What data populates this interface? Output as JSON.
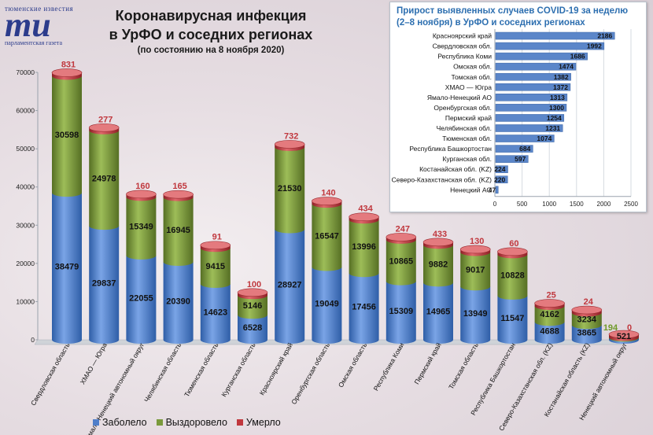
{
  "logo": {
    "top": "тюменские известия",
    "mark": "mu",
    "sub": "парламентская газета"
  },
  "main": {
    "title_line1": "Коронавирусная инфекция",
    "title_line2": "в УрФО и соседних регионах",
    "subtitle": "(по состоянию на 8 ноября 2020)"
  },
  "legend": {
    "sick": "Заболело",
    "recovered": "Выздоровело",
    "died": "Умерло"
  },
  "colors": {
    "sick": "#4f7ec9",
    "recovered": "#7a9a3c",
    "died": "#c0373d"
  },
  "chart_data": [
    {
      "type": "bar",
      "stacked": true,
      "ylim": [
        0,
        70000
      ],
      "yticks": [
        0,
        10000,
        20000,
        30000,
        40000,
        50000,
        60000,
        70000
      ],
      "categories": [
        "Свердловская область",
        "ХМАО — Югра",
        "Ямало-Ненецкий автономный округ",
        "Челябинская область",
        "Тюменская область",
        "Курганская область",
        "Красноярский край",
        "Оренбургская область",
        "Омская область",
        "Республика Коми",
        "Пермский край",
        "Томская область",
        "Республика Башкортостан",
        "Северо-Казахстанская обл. (KZ)",
        "Костанайская область (KZ)",
        "Ненецкий автономный округ"
      ],
      "series": [
        {
          "name": "Заболело",
          "values": [
            38479,
            29837,
            22055,
            20390,
            14623,
            6528,
            28927,
            19049,
            17456,
            15309,
            14965,
            13949,
            11547,
            4688,
            3865,
            521
          ]
        },
        {
          "name": "Выздоровело",
          "values": [
            30598,
            24978,
            15349,
            16945,
            9415,
            5146,
            21530,
            16547,
            13996,
            10865,
            9882,
            9017,
            10828,
            4162,
            3234,
            194
          ]
        },
        {
          "name": "Умерло",
          "values": [
            831,
            277,
            160,
            165,
            91,
            100,
            732,
            140,
            434,
            247,
            433,
            130,
            60,
            25,
            24,
            0
          ]
        }
      ]
    },
    {
      "type": "bar",
      "orientation": "horizontal",
      "title": "Прирост выявленных случаев COVID-19 за неделю (2–8 ноября) в УрФО и соседних регионах",
      "xlim": [
        0,
        2500
      ],
      "xticks": [
        0,
        500,
        1000,
        1500,
        2000,
        2500
      ],
      "categories": [
        "Красноярский край",
        "Свердловская обл.",
        "Республика Коми",
        "Омская обл.",
        "Томская обл.",
        "ХМАО — Югра",
        "Ямало-Ненецкий АО",
        "Оренбургская обл.",
        "Пермский край",
        "Челябинская обл.",
        "Тюменская обл.",
        "Республика Башкортостан",
        "Курганская обл.",
        "Костанайская обл. (KZ)",
        "Северо-Казахстанская обл. (KZ)",
        "Ненецкий АО"
      ],
      "values": [
        2186,
        1992,
        1686,
        1474,
        1382,
        1372,
        1313,
        1300,
        1254,
        1231,
        1074,
        684,
        597,
        224,
        220,
        47
      ]
    }
  ]
}
